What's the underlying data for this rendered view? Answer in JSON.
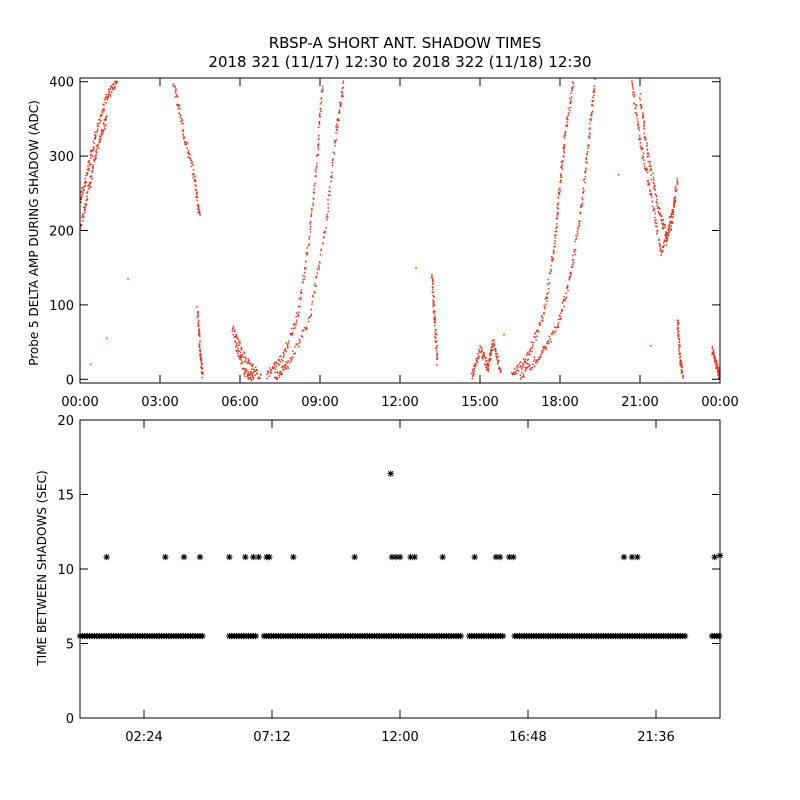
{
  "title_line1": "RBSP-A SHORT ANT. SHADOW TIMES",
  "title_line2": "2018 321 (11/17) 12:30 to 2018 322 (11/18) 12:30",
  "colors": {
    "top_points": "#e8321a",
    "bottom_points": "#000000",
    "axes": "#000000"
  },
  "chart_data": [
    {
      "type": "scatter",
      "title": "RBSP-A SHORT ANT. SHADOW TIMES",
      "ylabel": "Probe 5 DELTA AMP DURING SHADOW (ADC)",
      "xlabel": "",
      "xlim": [
        0,
        24
      ],
      "ylim": [
        -5,
        405
      ],
      "x_ticks": [
        0,
        3,
        6,
        9,
        12,
        15,
        18,
        21,
        24
      ],
      "x_tick_labels": [
        "00:00",
        "03:00",
        "06:00",
        "09:00",
        "12:00",
        "15:00",
        "18:00",
        "21:00",
        "00:00"
      ],
      "y_ticks": [
        0,
        100,
        200,
        300,
        400
      ],
      "y_tick_labels": [
        "0",
        "100",
        "200",
        "300",
        "400"
      ],
      "grid": false,
      "series": [
        {
          "color": "#e8321a",
          "marker": "dot",
          "tracks": [
            [
              [
                0.0,
                240
              ],
              [
                0.3,
                280
              ],
              [
                0.6,
                330
              ],
              [
                1.0,
                380
              ],
              [
                1.4,
                400
              ]
            ],
            [
              [
                0.0,
                200
              ],
              [
                0.35,
                260
              ],
              [
                0.7,
                320
              ],
              [
                1.0,
                350
              ]
            ],
            [
              [
                3.5,
                400
              ],
              [
                3.9,
                330
              ],
              [
                4.3,
                270
              ],
              [
                4.5,
                215
              ]
            ],
            [
              [
                4.4,
                95
              ],
              [
                4.5,
                40
              ],
              [
                4.6,
                5
              ]
            ],
            [
              [
                5.7,
                70
              ],
              [
                6.2,
                25
              ],
              [
                6.8,
                3
              ]
            ],
            [
              [
                5.8,
                50
              ],
              [
                6.2,
                10
              ],
              [
                6.5,
                2
              ]
            ],
            [
              [
                7.0,
                5
              ],
              [
                7.6,
                30
              ],
              [
                8.2,
                90
              ],
              [
                8.6,
                190
              ],
              [
                8.9,
                300
              ],
              [
                9.1,
                400
              ]
            ],
            [
              [
                7.3,
                3
              ],
              [
                7.8,
                20
              ],
              [
                8.6,
                80
              ],
              [
                9.2,
                200
              ],
              [
                9.6,
                330
              ],
              [
                9.9,
                400
              ]
            ],
            [
              [
                13.2,
                140
              ],
              [
                13.3,
                80
              ],
              [
                13.4,
                20
              ]
            ],
            [
              [
                14.7,
                5
              ],
              [
                15.0,
                40
              ],
              [
                15.3,
                15
              ],
              [
                15.5,
                50
              ],
              [
                15.8,
                5
              ]
            ],
            [
              [
                16.2,
                5
              ],
              [
                16.8,
                30
              ],
              [
                17.4,
                90
              ],
              [
                17.8,
                180
              ],
              [
                18.0,
                260
              ],
              [
                18.2,
                330
              ],
              [
                18.5,
                400
              ]
            ],
            [
              [
                16.5,
                3
              ],
              [
                17.2,
                30
              ],
              [
                17.9,
                70
              ],
              [
                18.4,
                140
              ],
              [
                18.8,
                230
              ],
              [
                19.1,
                330
              ],
              [
                19.3,
                400
              ]
            ],
            [
              [
                20.7,
                400
              ],
              [
                21.0,
                320
              ],
              [
                21.4,
                250
              ],
              [
                21.8,
                170
              ],
              [
                22.2,
                210
              ],
              [
                22.4,
                270
              ]
            ],
            [
              [
                21.0,
                380
              ],
              [
                21.3,
                300
              ],
              [
                21.7,
                230
              ],
              [
                22.0,
                190
              ],
              [
                22.3,
                240
              ]
            ],
            [
              [
                22.4,
                80
              ],
              [
                22.5,
                30
              ],
              [
                22.6,
                3
              ]
            ],
            [
              [
                23.7,
                40
              ],
              [
                23.9,
                15
              ],
              [
                24.0,
                5
              ]
            ]
          ],
          "points": [
            [
              0.4,
              20
            ],
            [
              1.0,
              55
            ],
            [
              1.8,
              135
            ],
            [
              12.6,
              150
            ],
            [
              20.2,
              275
            ],
            [
              21.4,
              45
            ],
            [
              15.9,
              60
            ]
          ]
        }
      ]
    },
    {
      "type": "scatter",
      "title": "",
      "ylabel": "TIME BETWEEN SHADOWS (SEC)",
      "xlabel": "",
      "xlim": [
        0,
        24
      ],
      "ylim": [
        0,
        20
      ],
      "x_ticks": [
        2.4,
        7.2,
        12.0,
        16.8,
        21.6
      ],
      "x_tick_labels": [
        "02:24",
        "07:12",
        "12:00",
        "16:48",
        "21:36"
      ],
      "y_ticks": [
        0,
        5,
        10,
        15,
        20
      ],
      "y_tick_labels": [
        "0",
        "5",
        "10",
        "15",
        "20"
      ],
      "grid": false,
      "series": [
        {
          "color": "#000000",
          "marker": "asterisk",
          "baseline_value": 5.5,
          "baseline_ranges": [
            [
              0.0,
              4.6
            ],
            [
              5.6,
              6.6
            ],
            [
              6.9,
              14.3
            ],
            [
              14.6,
              15.9
            ],
            [
              16.3,
              22.7
            ],
            [
              23.7,
              24.0
            ]
          ],
          "points": [
            [
              1.0,
              10.8
            ],
            [
              3.2,
              10.8
            ],
            [
              3.9,
              10.8
            ],
            [
              4.5,
              10.8
            ],
            [
              5.6,
              10.8
            ],
            [
              6.2,
              10.8
            ],
            [
              6.5,
              10.8
            ],
            [
              6.7,
              10.8
            ],
            [
              7.0,
              10.8
            ],
            [
              7.1,
              10.8
            ],
            [
              8.0,
              10.8
            ],
            [
              10.3,
              10.8
            ],
            [
              11.7,
              10.8
            ],
            [
              11.85,
              10.8
            ],
            [
              12.0,
              10.8
            ],
            [
              12.4,
              10.8
            ],
            [
              12.55,
              10.8
            ],
            [
              13.6,
              10.8
            ],
            [
              14.8,
              10.8
            ],
            [
              15.6,
              10.8
            ],
            [
              15.75,
              10.8
            ],
            [
              16.1,
              10.8
            ],
            [
              16.25,
              10.8
            ],
            [
              20.4,
              10.8
            ],
            [
              20.7,
              10.8
            ],
            [
              20.9,
              10.8
            ],
            [
              23.8,
              10.8
            ],
            [
              24.0,
              10.9
            ],
            [
              11.65,
              16.4
            ]
          ]
        }
      ]
    }
  ]
}
